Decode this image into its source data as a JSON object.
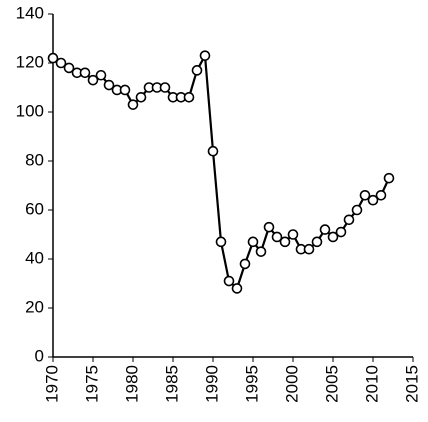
{
  "chart_data": {
    "type": "line",
    "x": [
      1970,
      1971,
      1972,
      1973,
      1974,
      1975,
      1976,
      1977,
      1978,
      1979,
      1980,
      1981,
      1982,
      1983,
      1984,
      1985,
      1986,
      1987,
      1988,
      1989,
      1990,
      1991,
      1992,
      1993,
      1994,
      1995,
      1996,
      1997,
      1998,
      1999,
      2000,
      2001,
      2002,
      2003,
      2004,
      2005,
      2006,
      2007,
      2008,
      2009,
      2010,
      2011,
      2012
    ],
    "values": [
      122,
      120,
      118,
      116,
      116,
      113,
      115,
      111,
      109,
      109,
      103,
      106,
      110,
      110,
      110,
      106,
      106,
      106,
      117,
      123,
      84,
      47,
      31,
      28,
      38,
      47,
      43,
      53,
      49,
      47,
      50,
      44,
      44,
      47,
      52,
      49,
      51,
      56,
      60,
      66,
      64,
      66,
      73
    ],
    "color": "#000000",
    "xlim": [
      1970,
      2015
    ],
    "xticks": [
      1970,
      1975,
      1980,
      1985,
      1990,
      1995,
      2000,
      2005,
      2010,
      2015
    ],
    "ylim": [
      0,
      140
    ],
    "yticks": [
      0,
      20,
      40,
      60,
      80,
      100,
      120,
      140
    ]
  }
}
